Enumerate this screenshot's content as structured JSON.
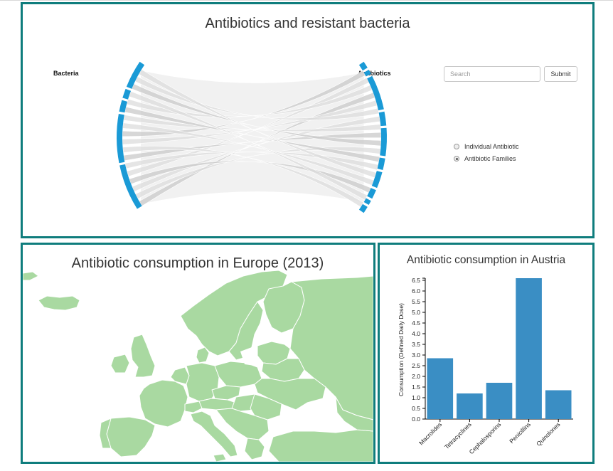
{
  "chord_panel": {
    "title": "Antibiotics and resistant bacteria",
    "left_label": "Bacteria",
    "right_label": "Antibiotics",
    "search_placeholder": "Search",
    "submit_label": "Submit",
    "radio_options": [
      {
        "label": "Individual Antibiotic",
        "selected": false
      },
      {
        "label": "Antibiotic Families",
        "selected": true
      }
    ],
    "arc_color": "#1a9ad6"
  },
  "map_panel": {
    "title": "Antibiotic consumption in Europe (2013)",
    "land_color": "#a9d9a1"
  },
  "chart_data": {
    "type": "bar",
    "title": "Antibiotic consumption in Austria",
    "ylabel": "Consumption (Defined Daily Dose)",
    "xlabel": "",
    "categories": [
      "Macrolides",
      "Tetracyclines",
      "Cephalosporins",
      "Penicillins",
      "Quinolones"
    ],
    "values": [
      2.85,
      1.2,
      1.7,
      6.6,
      1.35
    ],
    "ylim": [
      0,
      6.5
    ],
    "yticks": [
      "0.0",
      "0.5",
      "1.0",
      "1.5",
      "2.0",
      "2.5",
      "3.0",
      "3.5",
      "4.0",
      "4.5",
      "5.0",
      "5.5",
      "6.0",
      "6.5"
    ],
    "bar_color": "#3a8ec4"
  }
}
